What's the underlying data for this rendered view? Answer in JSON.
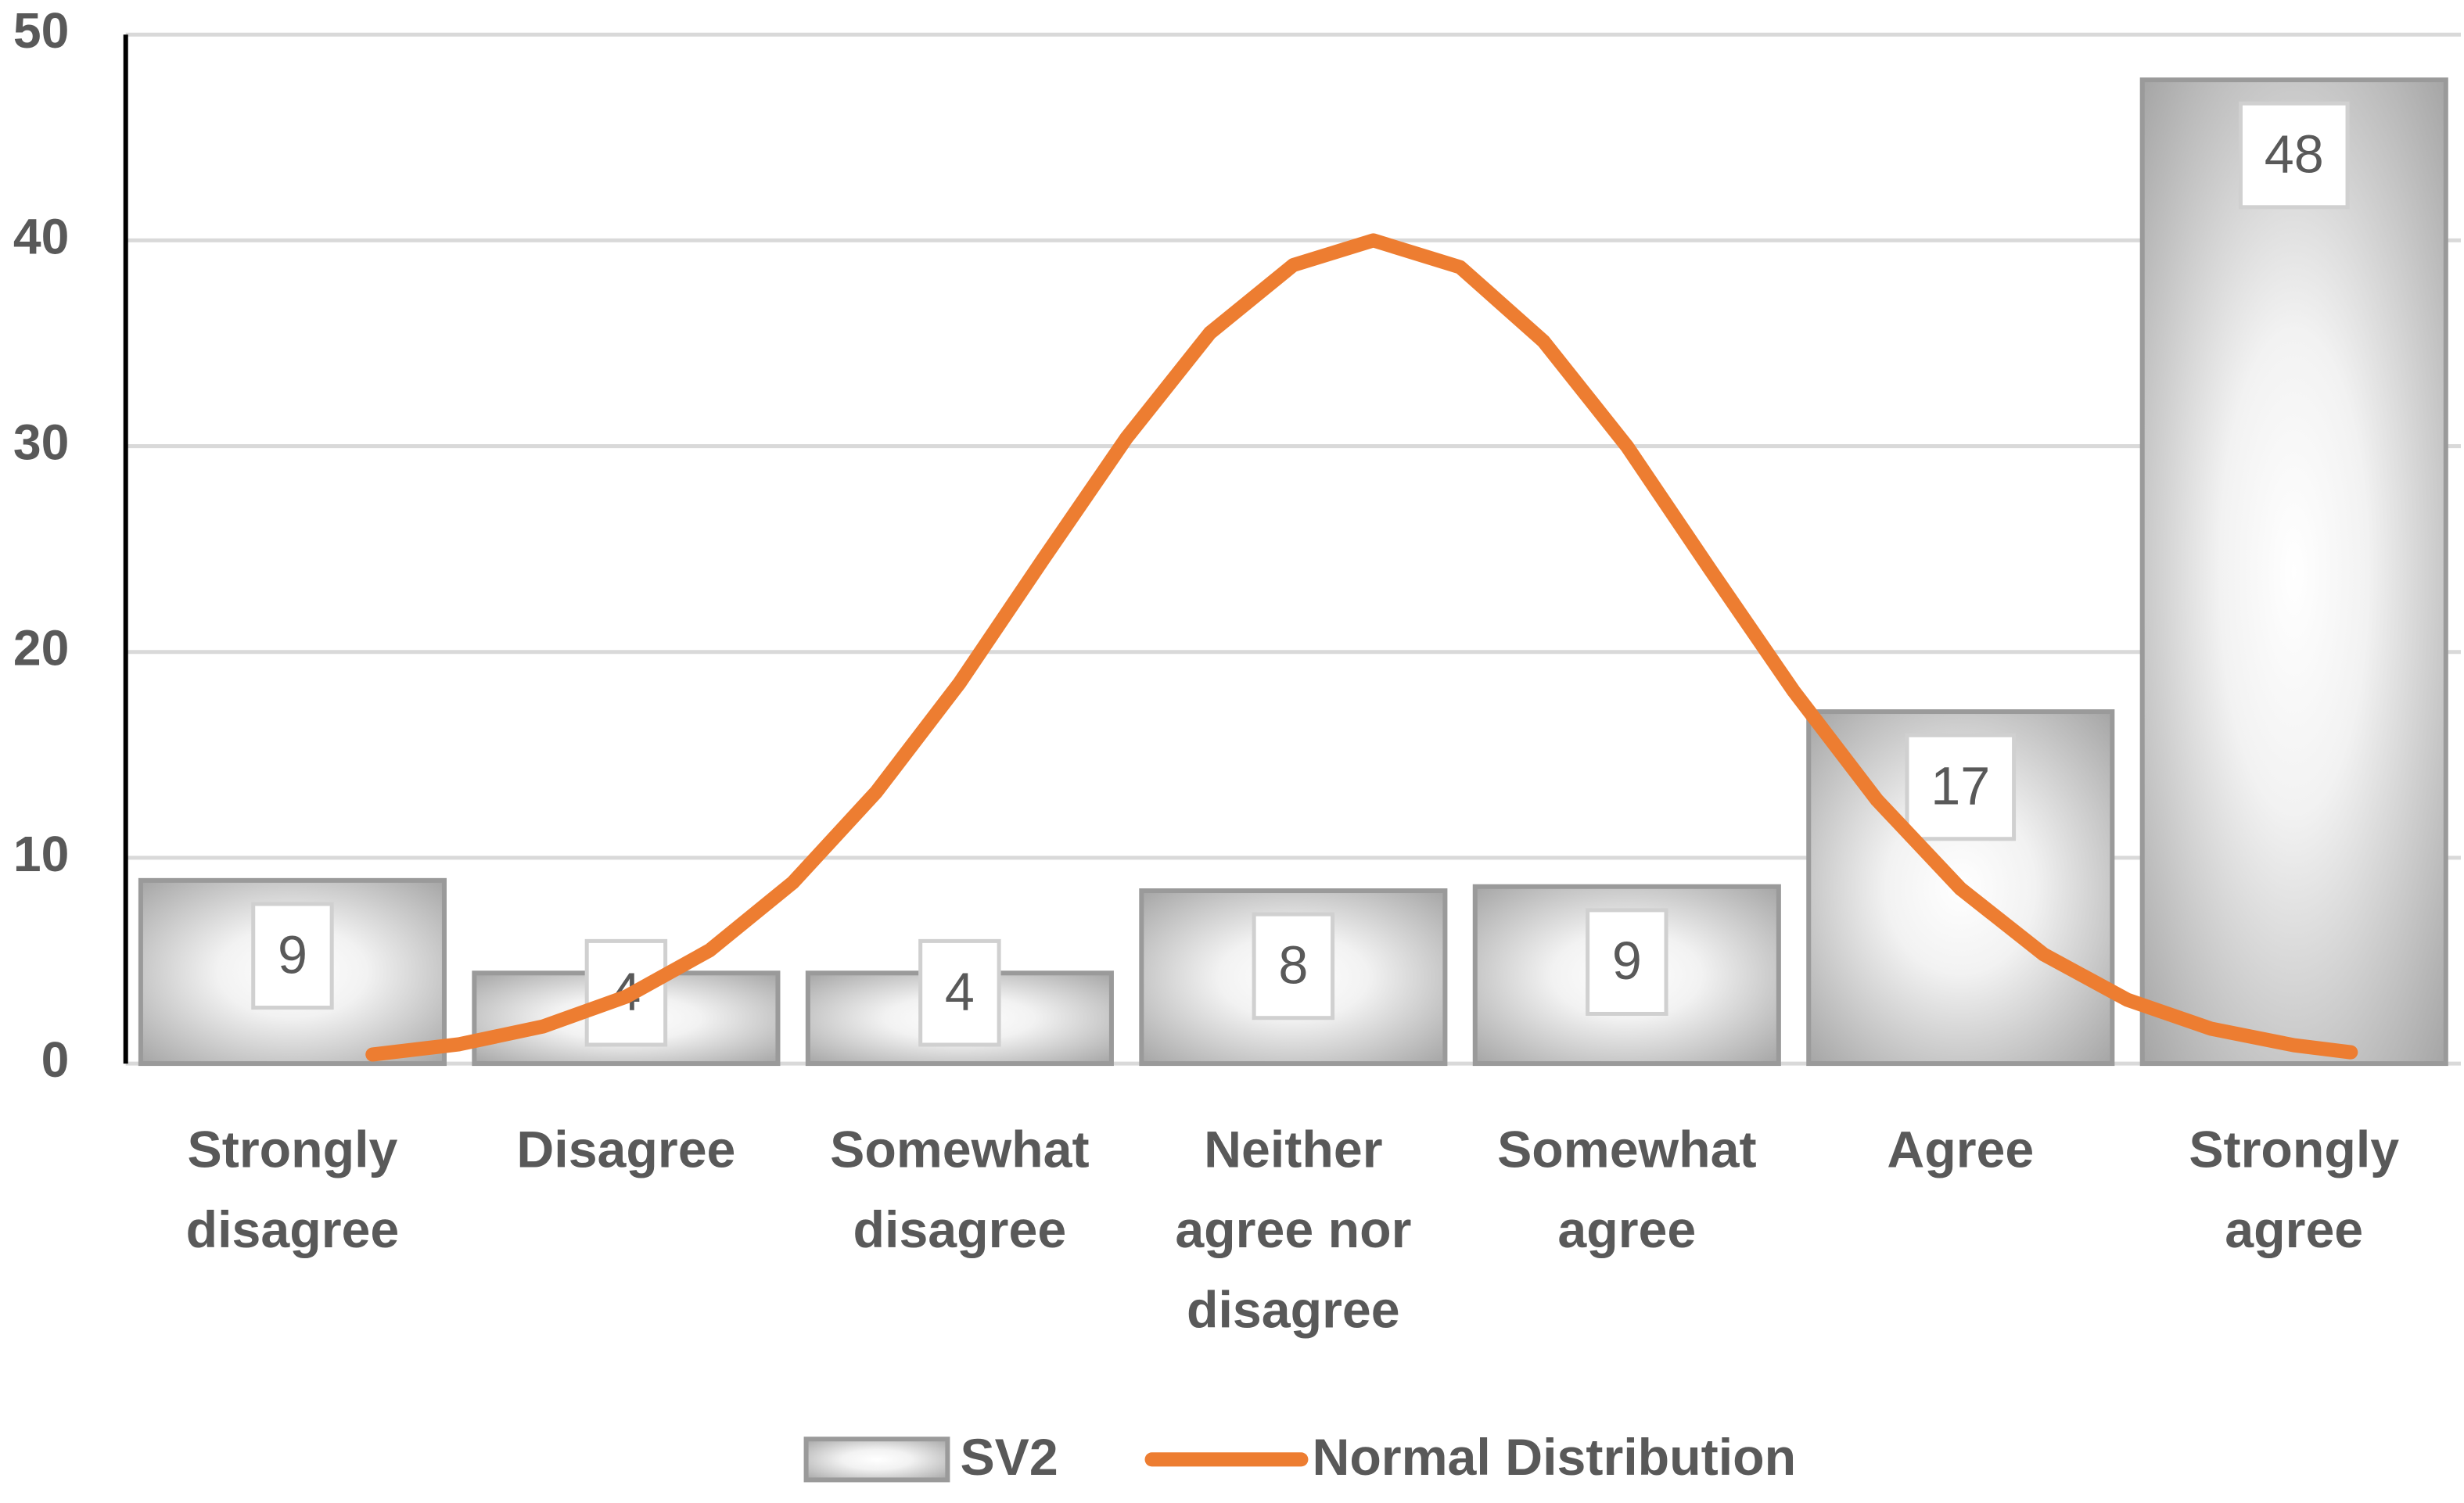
{
  "chart_data": {
    "type": "bar",
    "categories": [
      "Strongly disagree",
      "Disagree",
      "Somewhat disagree",
      "Neither agree nor disagree",
      "Somewhat agree",
      "Agree",
      "Strongly agree"
    ],
    "series": [
      {
        "name": "SV2",
        "type": "bar",
        "color": "#9a9a9a",
        "values": [
          8.9,
          4.4,
          4.4,
          8.4,
          8.6,
          17.1,
          47.8
        ],
        "value_labels": [
          "9",
          "4",
          "4",
          "8",
          "9",
          "17",
          "48"
        ]
      },
      {
        "name": "Normal Distribution",
        "type": "line",
        "color": "#ed7d31",
        "x": [
          0.24,
          0.5,
          0.75,
          1,
          1.25,
          1.5,
          1.75,
          2,
          2.25,
          2.5,
          2.75,
          3,
          3.24,
          3.5,
          3.75,
          4,
          4.25,
          4.5,
          4.75,
          5,
          5.25,
          5.5,
          5.75,
          6,
          6.17
        ],
        "values": [
          0.44,
          0.94,
          1.8,
          3.25,
          5.5,
          8.8,
          13.2,
          18.5,
          24.5,
          30.4,
          35.5,
          38.8,
          40,
          38.7,
          35.1,
          30.0,
          24.0,
          18.1,
          12.8,
          8.5,
          5.3,
          3.1,
          1.7,
          0.89,
          0.55
        ]
      }
    ],
    "ylim": [
      0,
      50
    ],
    "yticks": [
      0,
      10,
      20,
      30,
      40,
      50
    ],
    "grid": true,
    "legend": "bottom"
  }
}
